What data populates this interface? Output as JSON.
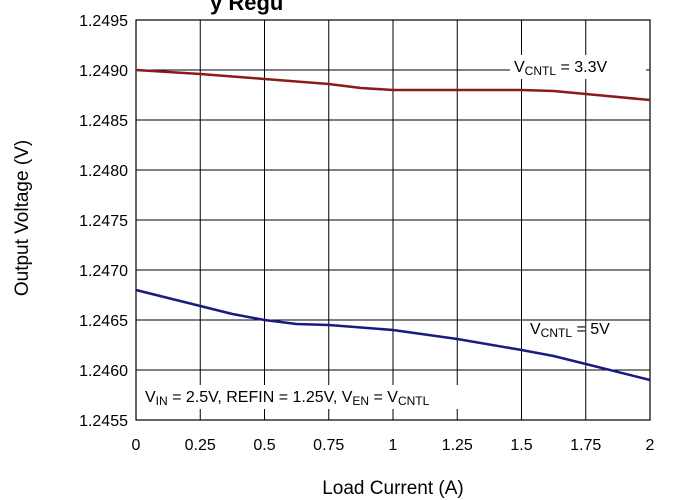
{
  "chart_data": {
    "type": "line",
    "title_fragment": "y  Regu",
    "xlabel": "Load Current (A)",
    "ylabel": "Output Voltage (V)",
    "xlim": [
      0,
      2
    ],
    "ylim": [
      1.2455,
      1.2495
    ],
    "x_ticks": [
      "0",
      "0.25",
      "0.5",
      "0.75",
      "1",
      "1.25",
      "1.5",
      "1.75",
      "2"
    ],
    "y_ticks": [
      "1.2495",
      "1.2490",
      "1.2485",
      "1.2480",
      "1.2475",
      "1.2470",
      "1.2465",
      "1.2460",
      "1.2455"
    ],
    "grid": true,
    "series": [
      {
        "name": "VCNTL = 3.3V",
        "color": "#8b1a1a",
        "x": [
          0,
          0.25,
          0.5,
          0.75,
          0.875,
          1,
          1.25,
          1.5,
          1.625,
          1.75,
          2
        ],
        "y": [
          1.249,
          1.24896,
          1.24891,
          1.24886,
          1.24882,
          1.2488,
          1.2488,
          1.2488,
          1.24879,
          1.24876,
          1.2487
        ]
      },
      {
        "name": "VCNTL = 5V",
        "color": "#1a1a80",
        "x": [
          0,
          0.125,
          0.25,
          0.375,
          0.5,
          0.625,
          0.75,
          1,
          1.25,
          1.5,
          1.625,
          1.75,
          2
        ],
        "y": [
          1.2468,
          1.24672,
          1.24664,
          1.24656,
          1.2465,
          1.24646,
          1.24645,
          1.2464,
          1.24631,
          1.2462,
          1.24614,
          1.24606,
          1.2459
        ]
      }
    ],
    "annotations": [
      {
        "id": "label_33",
        "parts": [
          {
            "t": "V"
          },
          {
            "t": "CNTL",
            "sub": true
          },
          {
            "t": " = 3.3V"
          }
        ]
      },
      {
        "id": "label_5",
        "parts": [
          {
            "t": "V"
          },
          {
            "t": "CNTL",
            "sub": true
          },
          {
            "t": " = 5V"
          }
        ]
      },
      {
        "id": "conditions",
        "parts": [
          {
            "t": "V"
          },
          {
            "t": "IN",
            "sub": true
          },
          {
            "t": " = 2.5V, REFIN = 1.25V, V"
          },
          {
            "t": "EN",
            "sub": true
          },
          {
            "t": " = V"
          },
          {
            "t": "CNTL",
            "sub": true
          }
        ]
      }
    ]
  }
}
